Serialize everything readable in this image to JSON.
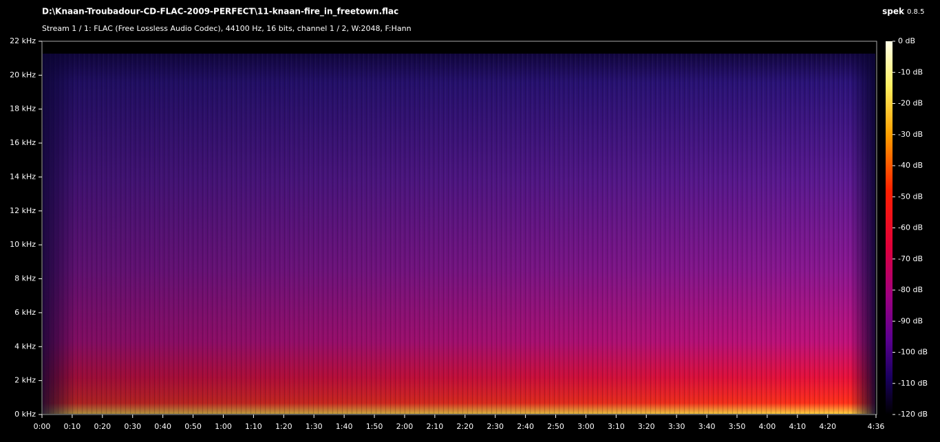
{
  "app": {
    "name": "spek",
    "version": "0.8.5"
  },
  "chart_data": {
    "type": "spectrogram",
    "title": "D:\\Knaan-Troubadour-CD-FLAC-2009-PERFECT\\11-knaan-fire_in_freetown.flac",
    "subtitle": "Stream 1 / 1: FLAC (Free Lossless Audio Codec), 44100 Hz, 16 bits, channel 1 / 2, W:2048, F:Hann",
    "xlim": [
      0,
      276
    ],
    "xticks": [
      {
        "value": 0,
        "label": "0:00"
      },
      {
        "value": 10,
        "label": "0:10"
      },
      {
        "value": 20,
        "label": "0:20"
      },
      {
        "value": 30,
        "label": "0:30"
      },
      {
        "value": 40,
        "label": "0:40"
      },
      {
        "value": 50,
        "label": "0:50"
      },
      {
        "value": 60,
        "label": "1:00"
      },
      {
        "value": 70,
        "label": "1:10"
      },
      {
        "value": 80,
        "label": "1:20"
      },
      {
        "value": 90,
        "label": "1:30"
      },
      {
        "value": 100,
        "label": "1:40"
      },
      {
        "value": 110,
        "label": "1:50"
      },
      {
        "value": 120,
        "label": "2:00"
      },
      {
        "value": 130,
        "label": "2:10"
      },
      {
        "value": 140,
        "label": "2:20"
      },
      {
        "value": 150,
        "label": "2:30"
      },
      {
        "value": 160,
        "label": "2:40"
      },
      {
        "value": 170,
        "label": "2:50"
      },
      {
        "value": 180,
        "label": "3:00"
      },
      {
        "value": 190,
        "label": "3:10"
      },
      {
        "value": 200,
        "label": "3:20"
      },
      {
        "value": 210,
        "label": "3:30"
      },
      {
        "value": 220,
        "label": "3:40"
      },
      {
        "value": 230,
        "label": "3:50"
      },
      {
        "value": 240,
        "label": "4:00"
      },
      {
        "value": 250,
        "label": "4:10"
      },
      {
        "value": 260,
        "label": "4:20"
      },
      {
        "value": 276,
        "label": "4:36"
      }
    ],
    "ylim": [
      0,
      22
    ],
    "yticks": [
      {
        "value": 0,
        "label": "0 kHz"
      },
      {
        "value": 2,
        "label": "2 kHz"
      },
      {
        "value": 4,
        "label": "4 kHz"
      },
      {
        "value": 6,
        "label": "6 kHz"
      },
      {
        "value": 8,
        "label": "8 kHz"
      },
      {
        "value": 10,
        "label": "10 kHz"
      },
      {
        "value": 12,
        "label": "12 kHz"
      },
      {
        "value": 14,
        "label": "14 kHz"
      },
      {
        "value": 16,
        "label": "16 kHz"
      },
      {
        "value": 18,
        "label": "18 kHz"
      },
      {
        "value": 20,
        "label": "20 kHz"
      },
      {
        "value": 22,
        "label": "22 kHz"
      }
    ],
    "colorbar": {
      "lim": [
        -120,
        0
      ],
      "ticks": [
        {
          "value": 0,
          "label": "0 dB"
        },
        {
          "value": -10,
          "label": "-10 dB"
        },
        {
          "value": -20,
          "label": "-20 dB"
        },
        {
          "value": -30,
          "label": "-30 dB"
        },
        {
          "value": -40,
          "label": "-40 dB"
        },
        {
          "value": -50,
          "label": "-50 dB"
        },
        {
          "value": -60,
          "label": "-60 dB"
        },
        {
          "value": -70,
          "label": "-70 dB"
        },
        {
          "value": -80,
          "label": "-80 dB"
        },
        {
          "value": -90,
          "label": "-90 dB"
        },
        {
          "value": -100,
          "label": "-100 dB"
        },
        {
          "value": -110,
          "label": "-110 dB"
        },
        {
          "value": -120,
          "label": "-120 dB"
        }
      ]
    }
  }
}
